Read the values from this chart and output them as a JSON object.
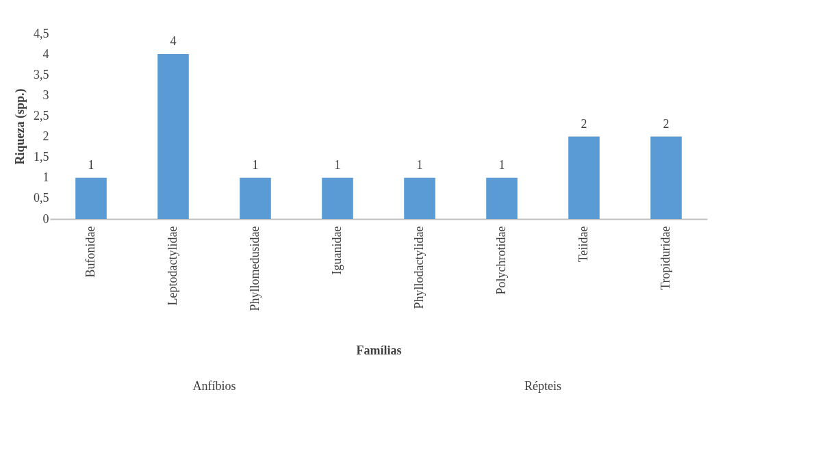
{
  "chart_data": {
    "type": "bar",
    "xlabel": "Famílias",
    "ylabel": "Riqueza (spp.)",
    "categories": [
      "Bufonidae",
      "Leptodactylidae",
      "Phyllomedusidae",
      "Iguanidae",
      "Phyllodactylidae",
      "Polychrotidae",
      "Teiidae",
      "Tropiduridae"
    ],
    "values": [
      1,
      4,
      1,
      1,
      1,
      1,
      2,
      2
    ],
    "color": "#5b9bd5",
    "ylim": [
      0,
      4.5
    ],
    "yticks": [
      0,
      {
        "value": 0.5,
        "label": "0,5"
      },
      1,
      {
        "value": 1.5,
        "label": "1,5"
      },
      2,
      {
        "value": 2.5,
        "label": "2,5"
      },
      3,
      {
        "value": 3.5,
        "label": "3,5"
      },
      4,
      {
        "value": 4.5,
        "label": "4,5"
      }
    ],
    "annotations": [
      "Anfíbios",
      "Répteis"
    ],
    "data_labels": true,
    "grid": false
  }
}
